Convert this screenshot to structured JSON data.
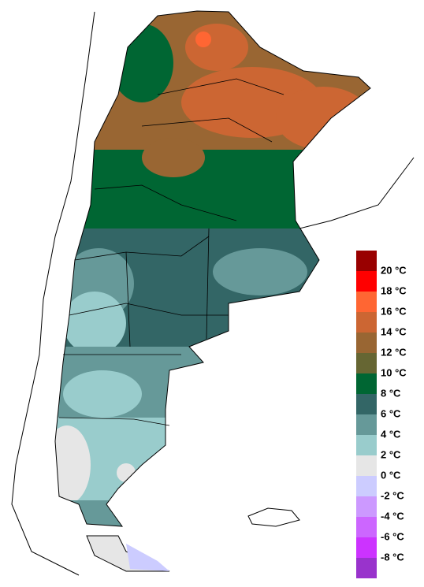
{
  "legend": {
    "labels": [
      "20 °C",
      "18 °C",
      "16 °C",
      "14 °C",
      "12 °C",
      "10 °C",
      "8 °C",
      "6 °C",
      "4 °C",
      "2 °C",
      "0 °C",
      "-2 °C",
      "-4 °C",
      "-6 °C",
      "-8 °C"
    ],
    "colors": [
      "#990000",
      "#ff0000",
      "#ff6633",
      "#cc6633",
      "#996633",
      "#666633",
      "#006633",
      "#336666",
      "#669999",
      "#99cccc",
      "#e6e6e6",
      "#ccccff",
      "#cc99ff",
      "#cc66ff",
      "#cc33ff",
      "#9933cc"
    ]
  }
}
